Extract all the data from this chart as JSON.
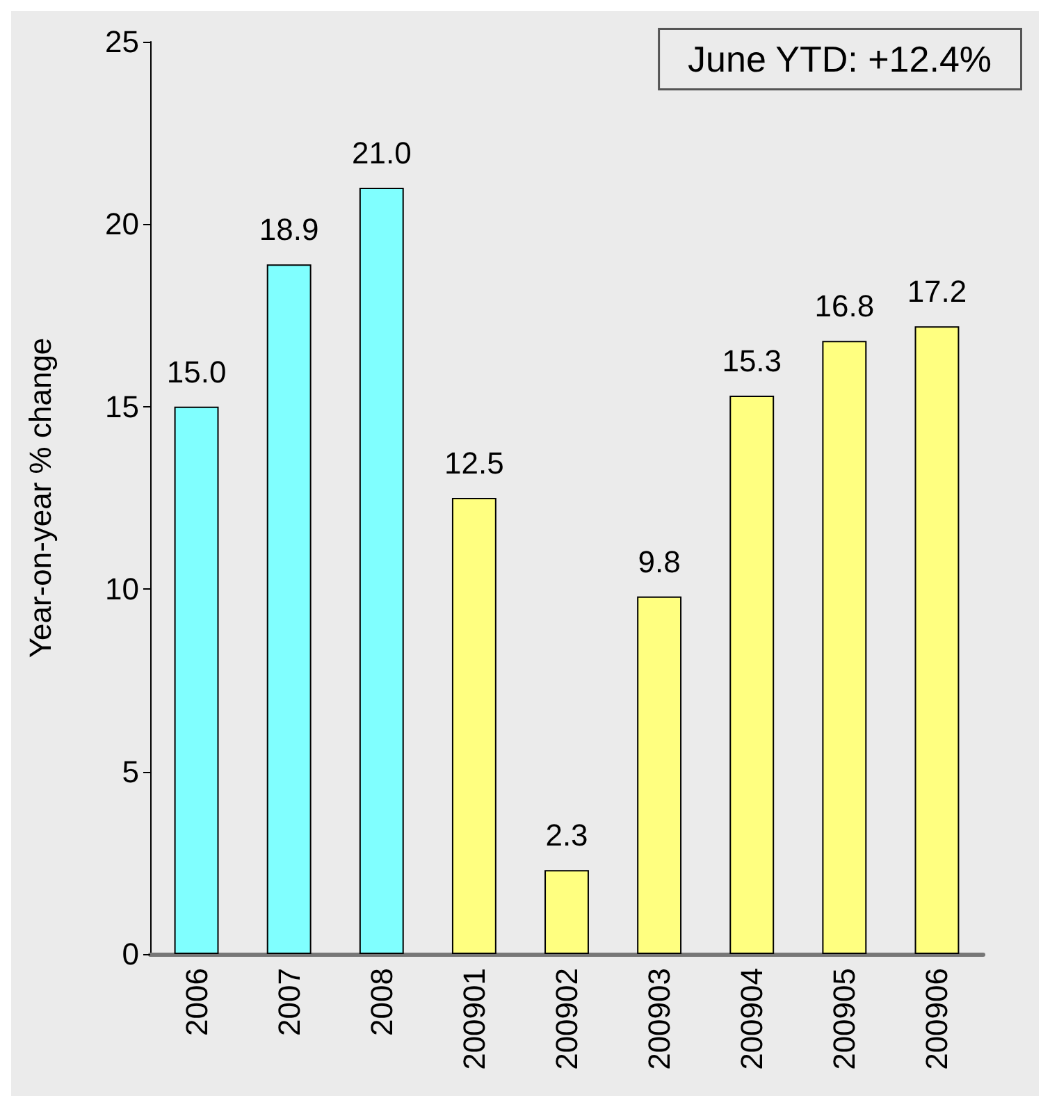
{
  "chart_data": {
    "type": "bar",
    "ylabel": "Year-on-year % change",
    "categories": [
      "2006",
      "2007",
      "2008",
      "200901",
      "200902",
      "200903",
      "200904",
      "200905",
      "200906"
    ],
    "values": [
      15.0,
      18.9,
      21.0,
      12.5,
      2.3,
      9.8,
      15.3,
      16.8,
      17.2
    ],
    "value_labels": [
      "15.0",
      "18.9",
      "21.0",
      "12.5",
      "2.3",
      "9.8",
      "15.3",
      "16.8",
      "17.2"
    ],
    "colors": [
      "#80ffff",
      "#80ffff",
      "#80ffff",
      "#ffff80",
      "#ffff80",
      "#ffff80",
      "#ffff80",
      "#ffff80",
      "#ffff80"
    ],
    "ylim": [
      0,
      25
    ],
    "yticks": [
      0,
      5,
      10,
      15,
      20,
      25
    ],
    "grid": false,
    "annotations": [
      "June YTD: +12.4%"
    ]
  }
}
